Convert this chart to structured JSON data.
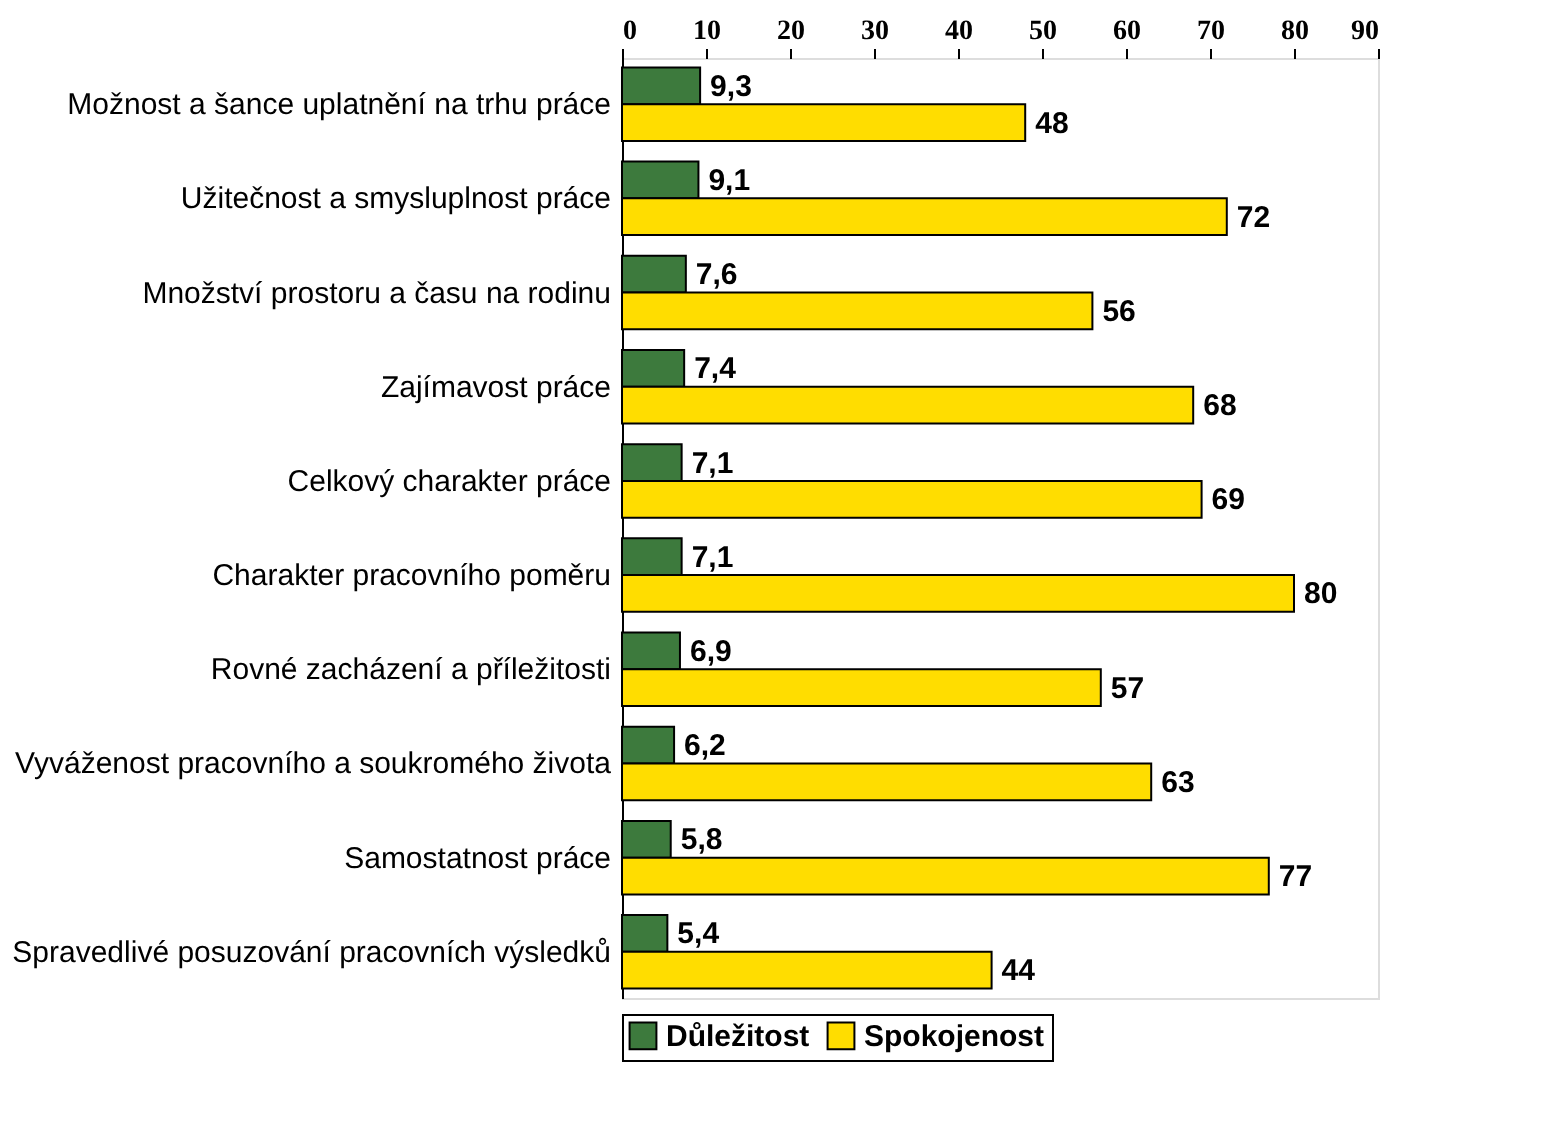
{
  "chart_data": {
    "type": "bar",
    "orientation": "horizontal",
    "categories": [
      "Možnost a šance uplatnění na trhu práce",
      "Užitečnost a smysluplnost práce",
      "Množství prostoru a času na rodinu",
      "Zajímavost práce",
      "Celkový charakter práce",
      "Charakter pracovního poměru",
      "Rovné zacházení a příležitosti",
      "Vyváženost pracovního a soukromého života",
      "Samostatnost práce",
      "Spravedlivé posuzování pracovních výsledků"
    ],
    "series": [
      {
        "name": "Důležitost",
        "color": "#3d7a3d",
        "values": [
          9.3,
          9.1,
          7.6,
          7.4,
          7.1,
          7.1,
          6.9,
          6.2,
          5.8,
          5.4
        ],
        "value_labels": [
          "9,3",
          "9,1",
          "7,6",
          "7,4",
          "7,1",
          "7,1",
          "6,9",
          "6,2",
          "5,8",
          "5,4"
        ]
      },
      {
        "name": "Spokojenost",
        "color": "#ffdd00",
        "values": [
          48,
          72,
          56,
          68,
          69,
          80,
          57,
          63,
          77,
          44
        ],
        "value_labels": [
          "48",
          "72",
          "56",
          "68",
          "69",
          "80",
          "57",
          "63",
          "77",
          "44"
        ]
      }
    ],
    "xlim": [
      0,
      90
    ],
    "xticks": [
      0,
      10,
      20,
      30,
      40,
      50,
      60,
      70,
      80,
      90
    ],
    "grid": false,
    "legend": "bottom"
  }
}
